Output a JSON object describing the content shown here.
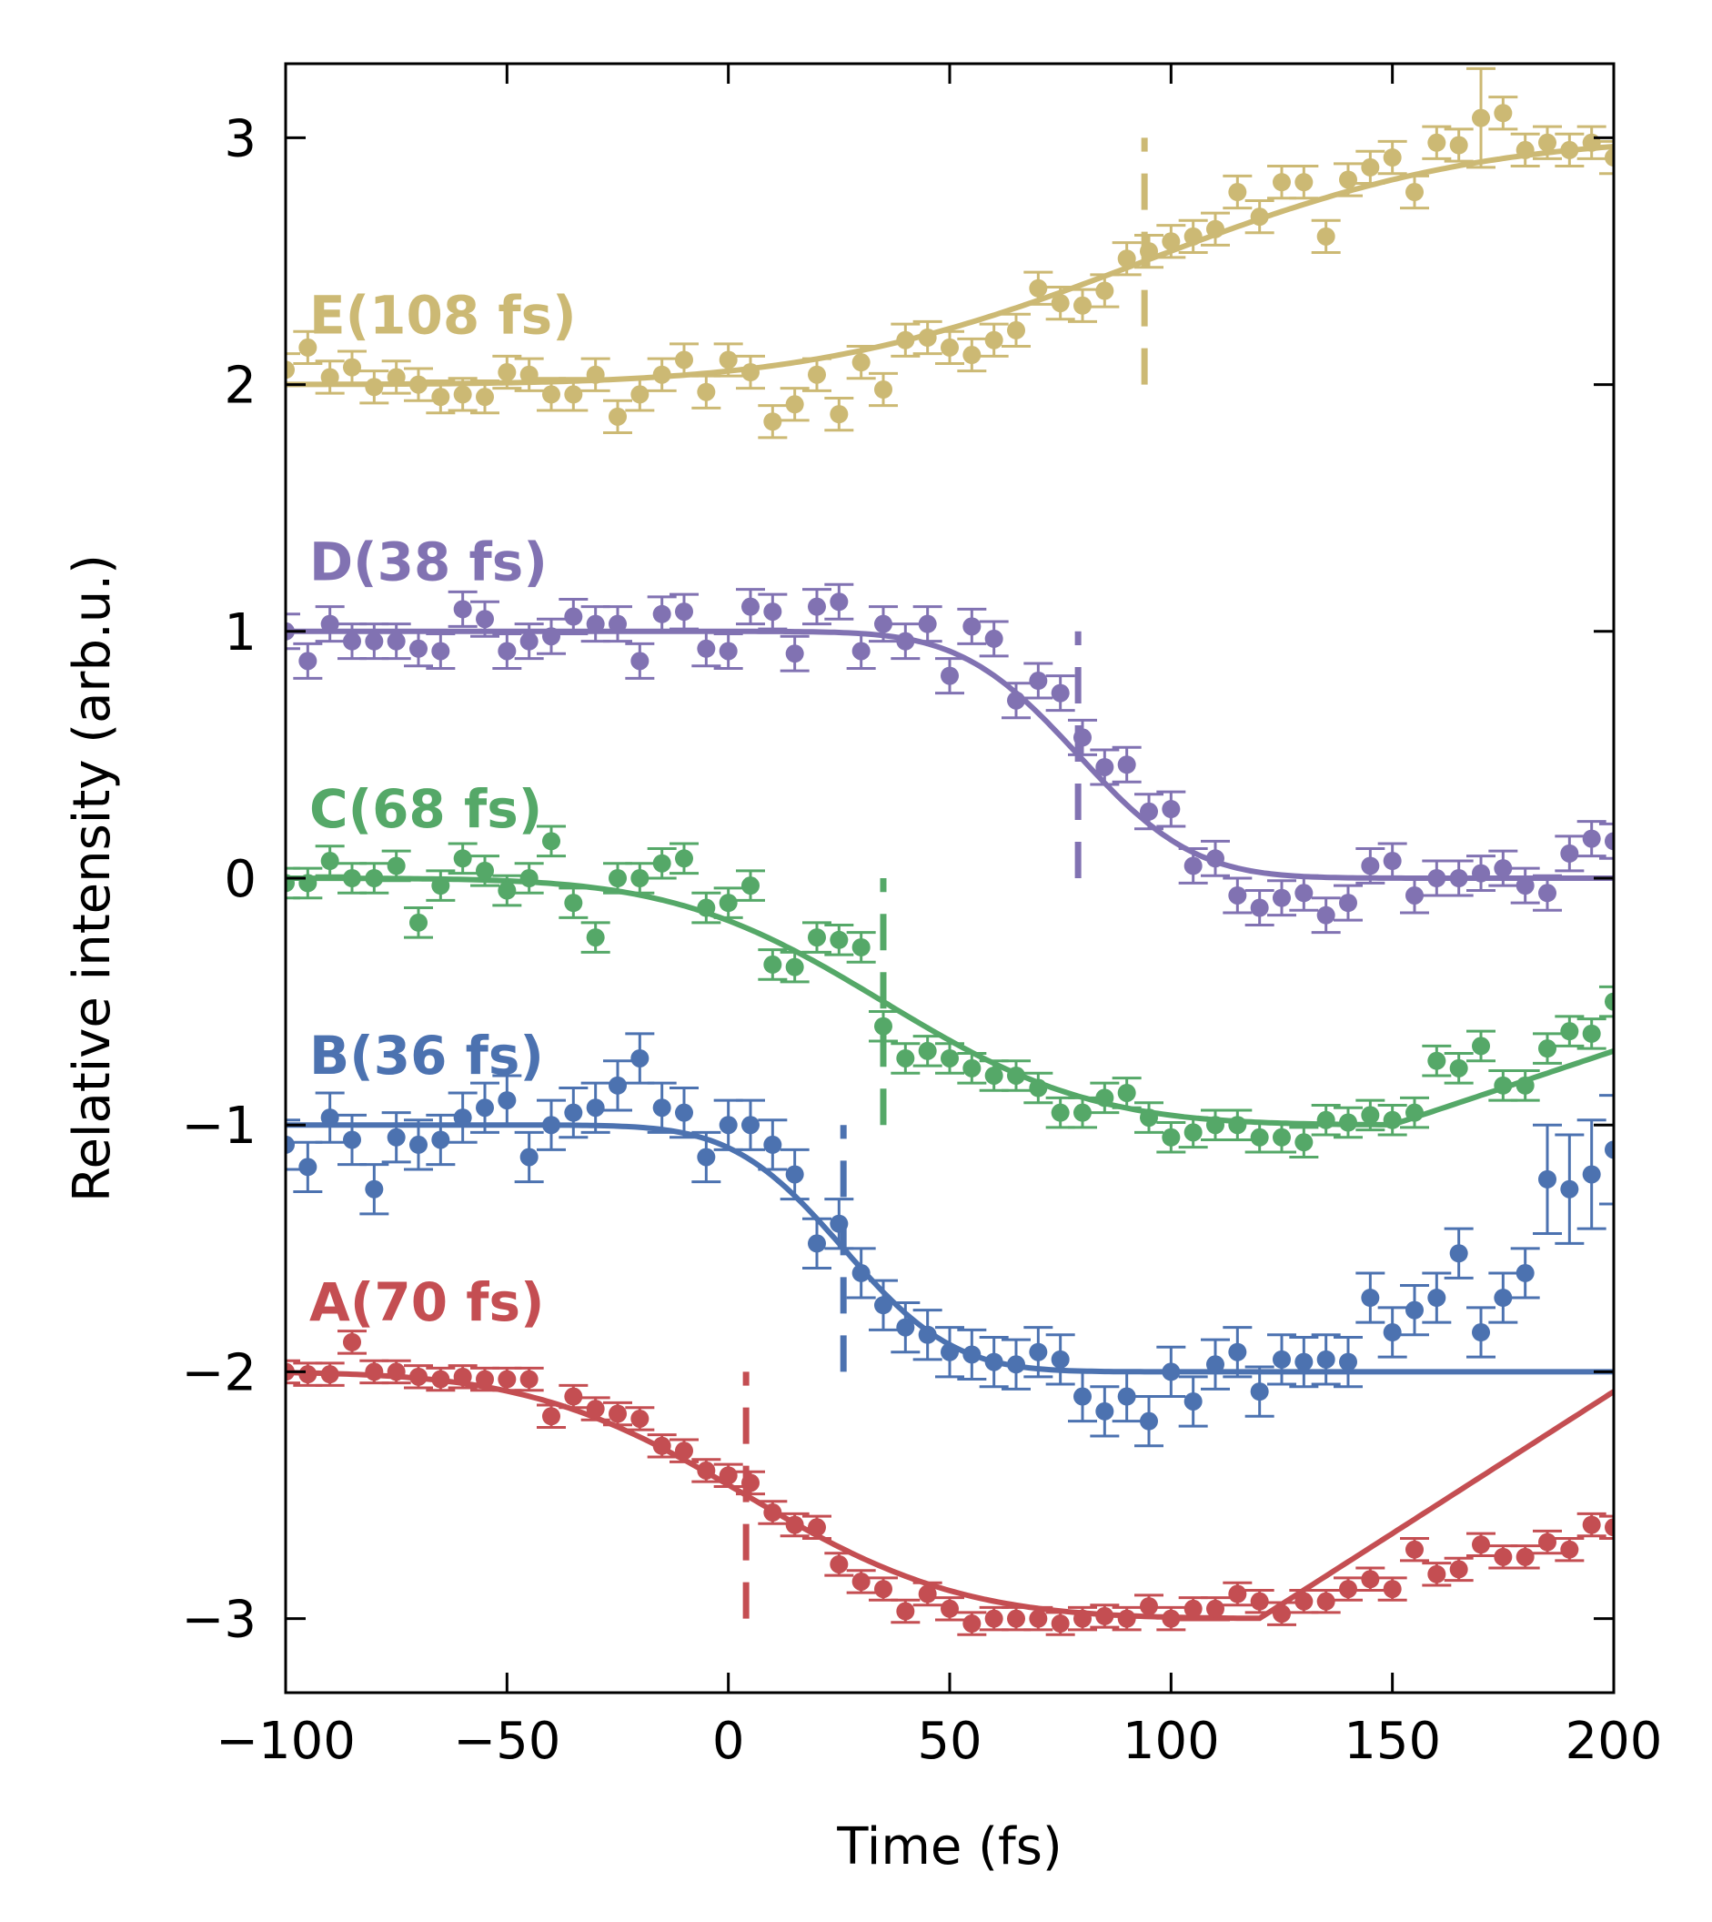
{
  "chart_data": {
    "type": "scatter",
    "title": "",
    "xlabel": "Time (fs)",
    "ylabel": "Relative intensity (arb.u.)",
    "xlim": [
      -100,
      200
    ],
    "ylim": [
      -3.3,
      3.3
    ],
    "xticks": [
      -100,
      -50,
      0,
      50,
      100,
      150,
      200
    ],
    "xtick_labels": [
      "−100",
      "−50",
      "0",
      "50",
      "100",
      "150",
      "200"
    ],
    "yticks": [
      -3,
      -2,
      -1,
      0,
      1,
      2,
      3
    ],
    "ytick_labels": [
      "−3",
      "−2",
      "−1",
      "0",
      "1",
      "2",
      "3"
    ],
    "grid": false,
    "legend": "none",
    "series": [
      {
        "name": "A(70 fs)",
        "color": "#c44e52",
        "offset": -2,
        "drop": -1,
        "t0": 4,
        "dur": 70,
        "recover": 0.0115,
        "recover_start": 120,
        "err": 0.045,
        "x": [
          -100,
          -95,
          -90,
          -85,
          -80,
          -75,
          -70,
          -65,
          -60,
          -55,
          -50,
          -45,
          -40,
          -35,
          -30,
          -25,
          -20,
          -15,
          -10,
          -5,
          0,
          5,
          10,
          15,
          20,
          25,
          30,
          35,
          40,
          45,
          50,
          55,
          60,
          65,
          70,
          75,
          80,
          85,
          90,
          95,
          100,
          105,
          110,
          115,
          120,
          125,
          130,
          135,
          140,
          145,
          150,
          155,
          160,
          165,
          170,
          175,
          180,
          185,
          190,
          195,
          200
        ],
        "y": [
          -2.0,
          -2.01,
          -2.01,
          -1.88,
          -2.0,
          -2.0,
          -2.02,
          -2.03,
          -2.02,
          -2.03,
          -2.03,
          -2.03,
          -2.18,
          -2.1,
          -2.15,
          -2.17,
          -2.19,
          -2.3,
          -2.32,
          -2.4,
          -2.42,
          -2.45,
          -2.57,
          -2.62,
          -2.63,
          -2.78,
          -2.85,
          -2.88,
          -2.97,
          -2.9,
          -2.96,
          -3.02,
          -3.0,
          -3.0,
          -3.0,
          -3.02,
          -3.0,
          -2.99,
          -3.0,
          -2.95,
          -3.0,
          -2.96,
          -2.96,
          -2.9,
          -2.93,
          -2.98,
          -2.93,
          -2.93,
          -2.88,
          -2.84,
          -2.88,
          -2.72,
          -2.82,
          -2.8,
          -2.7,
          -2.75,
          -2.75,
          -2.69,
          -2.72,
          -2.62,
          -2.63
        ],
        "dashed_marker_x": 4,
        "dashed_marker_y": [
          -3.0,
          -2.0
        ]
      },
      {
        "name": "B(36 fs)",
        "color": "#4c72b0",
        "offset": -1,
        "drop": -1,
        "t0": 26,
        "dur": 36,
        "recover": 0,
        "recover_start": 200,
        "err": 0.1,
        "x": [
          -100,
          -95,
          -90,
          -85,
          -80,
          -75,
          -70,
          -65,
          -60,
          -55,
          -50,
          -45,
          -40,
          -35,
          -30,
          -25,
          -20,
          -15,
          -10,
          -5,
          0,
          5,
          10,
          15,
          20,
          25,
          30,
          35,
          40,
          45,
          50,
          55,
          60,
          65,
          70,
          75,
          80,
          85,
          90,
          95,
          100,
          105,
          110,
          115,
          120,
          125,
          130,
          135,
          140,
          145,
          150,
          155,
          160,
          165,
          170,
          175,
          180,
          185,
          190,
          195,
          200
        ],
        "y": [
          -1.08,
          -1.17,
          -0.97,
          -1.06,
          -1.26,
          -1.05,
          -1.08,
          -1.06,
          -0.97,
          -0.93,
          -0.9,
          -1.13,
          -1.0,
          -0.95,
          -0.93,
          -0.84,
          -0.73,
          -0.93,
          -0.95,
          -1.13,
          -1.0,
          -1.0,
          -1.08,
          -1.2,
          -1.48,
          -1.4,
          -1.6,
          -1.73,
          -1.82,
          -1.85,
          -1.92,
          -1.93,
          -1.96,
          -1.97,
          -1.92,
          -1.95,
          -2.1,
          -2.16,
          -2.1,
          -2.2,
          -2.0,
          -2.12,
          -1.97,
          -1.92,
          -2.08,
          -1.95,
          -1.96,
          -1.95,
          -1.96,
          -1.7,
          -1.84,
          -1.75,
          -1.7,
          -1.52,
          -1.84,
          -1.7,
          -1.6,
          -1.22,
          -1.26,
          -1.2,
          -1.1
        ],
        "err_override": {
          "185": 0.22,
          "190": 0.22,
          "195": 0.22,
          "200": 0.22
        },
        "dashed_marker_x": 26,
        "dashed_marker_y": [
          -2.0,
          -1.0
        ]
      },
      {
        "name": "C(68 fs)",
        "color": "#55a868",
        "offset": 0,
        "drop": -1,
        "t0": 35,
        "dur": 68,
        "recover": 0.006,
        "recover_start": 150,
        "err": 0.06,
        "x": [
          -100,
          -95,
          -90,
          -85,
          -80,
          -75,
          -70,
          -65,
          -60,
          -55,
          -50,
          -45,
          -40,
          -35,
          -30,
          -25,
          -20,
          -15,
          -10,
          -5,
          0,
          5,
          10,
          15,
          20,
          25,
          30,
          35,
          40,
          45,
          50,
          55,
          60,
          65,
          70,
          75,
          80,
          85,
          90,
          95,
          100,
          105,
          110,
          115,
          120,
          125,
          130,
          135,
          140,
          145,
          150,
          155,
          160,
          165,
          170,
          175,
          180,
          185,
          190,
          195,
          200
        ],
        "y": [
          -0.02,
          -0.02,
          0.07,
          0.0,
          0.0,
          0.05,
          -0.18,
          -0.03,
          0.08,
          0.03,
          -0.05,
          0.0,
          0.15,
          -0.1,
          -0.24,
          0.0,
          0.0,
          0.06,
          0.08,
          -0.12,
          -0.1,
          -0.03,
          -0.35,
          -0.36,
          -0.24,
          -0.25,
          -0.28,
          -0.6,
          -0.73,
          -0.7,
          -0.73,
          -0.77,
          -0.8,
          -0.8,
          -0.85,
          -0.95,
          -0.95,
          -0.89,
          -0.87,
          -0.97,
          -1.05,
          -1.03,
          -1.0,
          -1.0,
          -1.05,
          -1.05,
          -1.07,
          -0.98,
          -0.99,
          -0.96,
          -0.98,
          -0.95,
          -0.74,
          -0.77,
          -0.68,
          -0.84,
          -0.84,
          -0.69,
          -0.62,
          -0.63,
          -0.5
        ],
        "dashed_marker_x": 35,
        "dashed_marker_y": [
          -1.0,
          0.0
        ]
      },
      {
        "name": "D(38 fs)",
        "color": "#8172b2",
        "offset": 1,
        "drop": -1,
        "t0": 79,
        "dur": 38,
        "recover": 0,
        "recover_start": 200,
        "err": 0.07,
        "x": [
          -100,
          -95,
          -90,
          -85,
          -80,
          -75,
          -70,
          -65,
          -60,
          -55,
          -50,
          -45,
          -40,
          -35,
          -30,
          -25,
          -20,
          -15,
          -10,
          -5,
          0,
          5,
          10,
          15,
          20,
          25,
          30,
          35,
          40,
          45,
          50,
          55,
          60,
          65,
          70,
          75,
          80,
          85,
          90,
          95,
          100,
          105,
          110,
          115,
          120,
          125,
          130,
          135,
          140,
          145,
          150,
          155,
          160,
          165,
          170,
          175,
          180,
          185,
          190,
          195,
          200
        ],
        "y": [
          1.0,
          0.88,
          1.03,
          0.96,
          0.96,
          0.96,
          0.93,
          0.92,
          1.09,
          1.05,
          0.92,
          0.96,
          0.98,
          1.06,
          1.03,
          1.03,
          0.88,
          1.07,
          1.08,
          0.93,
          0.92,
          1.1,
          1.08,
          0.91,
          1.1,
          1.12,
          0.92,
          1.03,
          0.96,
          1.03,
          0.82,
          1.02,
          0.97,
          0.72,
          0.8,
          0.75,
          0.57,
          0.45,
          0.46,
          0.27,
          0.28,
          0.05,
          0.08,
          -0.07,
          -0.12,
          -0.08,
          -0.06,
          -0.15,
          -0.1,
          0.05,
          0.07,
          -0.07,
          0.0,
          0.0,
          0.02,
          0.04,
          -0.03,
          -0.06,
          0.1,
          0.16,
          0.15
        ],
        "dashed_marker_x": 79,
        "dashed_marker_y": [
          0.0,
          1.0
        ]
      },
      {
        "name": "E(108 fs)",
        "color": "#ccb974",
        "offset": 2,
        "drop": 1,
        "t0": 94,
        "dur": 108,
        "recover": 0,
        "recover_start": 200,
        "err": 0.065,
        "x": [
          -100,
          -95,
          -90,
          -85,
          -80,
          -75,
          -70,
          -65,
          -60,
          -55,
          -50,
          -45,
          -40,
          -35,
          -30,
          -25,
          -20,
          -15,
          -10,
          -5,
          0,
          5,
          10,
          15,
          20,
          25,
          30,
          35,
          40,
          45,
          50,
          55,
          60,
          65,
          70,
          75,
          80,
          85,
          90,
          95,
          100,
          105,
          110,
          115,
          120,
          125,
          130,
          135,
          140,
          145,
          150,
          155,
          160,
          165,
          170,
          175,
          180,
          185,
          190,
          195,
          200
        ],
        "y": [
          2.06,
          2.15,
          2.03,
          2.07,
          1.99,
          2.03,
          2.0,
          1.95,
          1.96,
          1.95,
          2.05,
          2.04,
          1.96,
          1.96,
          2.04,
          1.87,
          1.96,
          2.04,
          2.1,
          1.97,
          2.1,
          2.05,
          1.85,
          1.92,
          2.04,
          1.88,
          2.09,
          1.98,
          2.18,
          2.19,
          2.15,
          2.12,
          2.18,
          2.22,
          2.39,
          2.33,
          2.32,
          2.38,
          2.51,
          2.54,
          2.58,
          2.6,
          2.63,
          2.78,
          2.68,
          2.82,
          2.82,
          2.6,
          2.83,
          2.88,
          2.92,
          2.78,
          2.98,
          2.97,
          3.08,
          3.1,
          2.95,
          2.98,
          2.95,
          2.98,
          2.92
        ],
        "err_override": {
          "170": 0.2
        },
        "dashed_marker_x": 94,
        "dashed_marker_y": [
          2.0,
          3.0
        ]
      }
    ],
    "annotations": [
      {
        "text": "E(108 fs)",
        "x": -100,
        "y": 2.2,
        "color": "#ccb974"
      },
      {
        "text": "D(38 fs)",
        "x": -100,
        "y": 1.2,
        "color": "#8172b2"
      },
      {
        "text": "C(68 fs)",
        "x": -100,
        "y": 0.2,
        "color": "#55a868"
      },
      {
        "text": "B(36 fs)",
        "x": -100,
        "y": -0.8,
        "color": "#4c72b0"
      },
      {
        "text": "A(70 fs)",
        "x": -100,
        "y": -1.8,
        "color": "#c44e52"
      }
    ]
  }
}
